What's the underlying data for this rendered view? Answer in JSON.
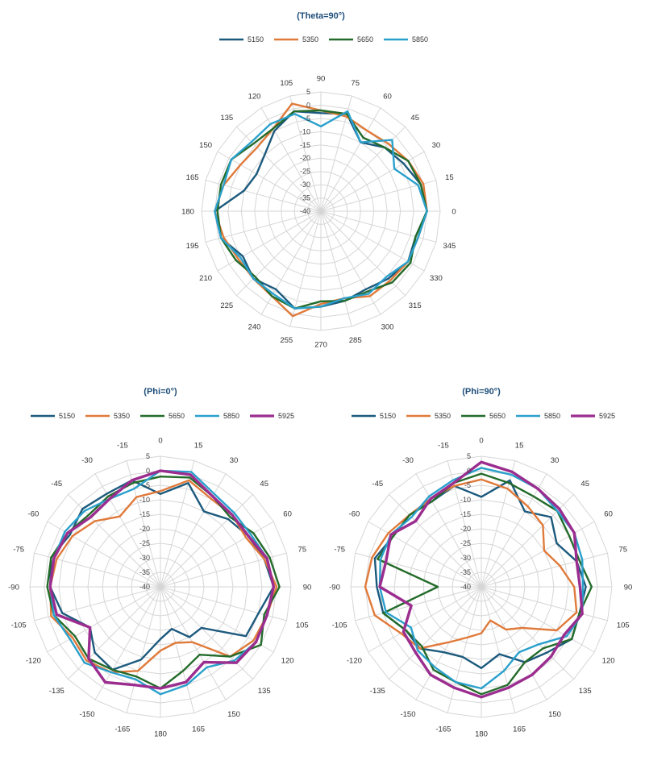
{
  "chart_data": [
    {
      "type": "radar",
      "title": "(Theta=90°)",
      "angle_labels": [
        "90",
        "75",
        "60",
        "45",
        "30",
        "15",
        "0",
        "345",
        "330",
        "315",
        "300",
        "285",
        "270",
        "255",
        "240",
        "225",
        "210",
        "195",
        "180",
        "165",
        "150",
        "135",
        "120",
        "105"
      ],
      "radial_labels": [
        "5",
        "0",
        "-5",
        "-10",
        "-15",
        "-20",
        "-25",
        "-30",
        "-35",
        "-40"
      ],
      "rlim": [
        -40,
        5
      ],
      "grid": true,
      "legend_position": "top",
      "series": [
        {
          "name": "5150",
          "color": "#1c5a7d",
          "values": [
            -3,
            -2,
            -10,
            -6,
            -4,
            -1,
            0,
            -3,
            -2,
            -4,
            -6,
            -5,
            -4,
            -2,
            -6,
            -4,
            -6,
            -1,
            0,
            -10,
            -12,
            -10,
            -5,
            -1
          ]
        },
        {
          "name": "5350",
          "color": "#e07a3a",
          "values": [
            -2,
            -3,
            -5,
            -4,
            -2,
            0,
            0,
            -2,
            -2,
            -3,
            -3,
            -6,
            -5,
            1,
            -3,
            -4,
            -4,
            -2,
            0,
            -2,
            -5,
            -6,
            -4,
            2
          ]
        },
        {
          "name": "5650",
          "color": "#236b2a",
          "values": [
            -2,
            -2,
            -8,
            -6,
            -2,
            -1,
            0,
            -3,
            -1,
            -2,
            -5,
            -5,
            -6,
            -2,
            -3,
            -5,
            -3,
            -1,
            -1,
            -1,
            -1,
            -4,
            -4,
            -1
          ]
        },
        {
          "name": "5850",
          "color": "#2aa0cc",
          "values": [
            -8,
            -1,
            -10,
            -2,
            -8,
            -2,
            0,
            -2,
            -2,
            -5,
            -4,
            -6,
            -4,
            -2,
            -4,
            -4,
            -5,
            -1,
            0,
            -2,
            -1,
            -3,
            -2,
            -2
          ]
        }
      ]
    },
    {
      "type": "radar",
      "title": "(Phi=0°)",
      "angle_labels": [
        "0",
        "15",
        "30",
        "45",
        "60",
        "75",
        "90",
        "105",
        "120",
        "135",
        "150",
        "165",
        "180",
        "-165",
        "-150",
        "-135",
        "-120",
        "-105",
        "-90",
        "-75",
        "-60",
        "-45",
        "-30",
        "-15"
      ],
      "radial_labels": [
        "5",
        "0",
        "-5",
        "-10",
        "-15",
        "-20",
        "-25",
        "-30",
        "-35",
        "-40"
      ],
      "rlim": [
        -40,
        5
      ],
      "grid": true,
      "legend_position": "top",
      "series": [
        {
          "name": "5150",
          "color": "#1c5a7d",
          "values": [
            -8,
            -3,
            -10,
            -7,
            -5,
            -3,
            -1,
            -5,
            -6,
            -20,
            -20,
            -25,
            -22,
            -14,
            -7,
            -8,
            -12,
            -5,
            -2,
            -1,
            -4,
            -2,
            -3,
            -2
          ]
        },
        {
          "name": "5350",
          "color": "#e07a3a",
          "values": [
            -7,
            -2,
            -5,
            -5,
            -6,
            -3,
            0,
            -2,
            -3,
            -6,
            -18,
            -20,
            -18,
            -10,
            -6,
            -4,
            -5,
            -1,
            -2,
            -3,
            -5,
            -8,
            -12,
            -8
          ]
        },
        {
          "name": "5650",
          "color": "#236b2a",
          "values": [
            -2,
            -1,
            -4,
            -6,
            -3,
            -1,
            1,
            -3,
            0,
            -6,
            -13,
            -10,
            -5,
            -8,
            -7,
            -5,
            -6,
            -2,
            -1,
            -1,
            -3,
            -5,
            -4,
            -3
          ]
        },
        {
          "name": "5850",
          "color": "#2aa0cc",
          "values": [
            0,
            1,
            -3,
            -4,
            -4,
            -2,
            -1,
            -2,
            -2,
            -4,
            -8,
            -5,
            -3,
            -7,
            -6,
            -3,
            -4,
            -2,
            -2,
            -2,
            -2,
            -3,
            -5,
            -5
          ]
        },
        {
          "name": "5925",
          "color": "#9b2d8f",
          "values": [
            0,
            0,
            -4,
            -5,
            -5,
            -2,
            -1,
            -2,
            -2,
            -3,
            -10,
            -6,
            -5,
            -5,
            -2,
            -5,
            -12,
            -3,
            -2,
            -2,
            -3,
            -6,
            -5,
            -2
          ]
        }
      ]
    },
    {
      "type": "radar",
      "title": "(Phi=90°)",
      "angle_labels": [
        "0",
        "15",
        "30",
        "45",
        "60",
        "75",
        "90",
        "105",
        "120",
        "135",
        "150",
        "165",
        "180",
        "-165",
        "-150",
        "-135",
        "-120",
        "-105",
        "-90",
        "-75",
        "-60",
        "-45",
        "-30",
        "-15"
      ],
      "radial_labels": [
        "5",
        "0",
        "-5",
        "-10",
        "-15",
        "-20",
        "-25",
        "-30",
        "-35",
        "-40"
      ],
      "rlim": [
        -40,
        5
      ],
      "grid": true,
      "legend_position": "top",
      "series": [
        {
          "name": "5150",
          "color": "#1c5a7d",
          "values": [
            -9,
            -2,
            -10,
            -6,
            -10,
            -6,
            -4,
            -5,
            -4,
            -8,
            -10,
            -16,
            -12,
            -15,
            -14,
            -10,
            -10,
            -5,
            -4,
            -2,
            -5,
            -5,
            -6,
            -4
          ]
        },
        {
          "name": "5350",
          "color": "#e07a3a",
          "values": [
            -3,
            -5,
            -8,
            -10,
            -15,
            -12,
            -8,
            -6,
            -10,
            -20,
            -23,
            -28,
            -24,
            -22,
            -18,
            -10,
            -8,
            -2,
            0,
            -1,
            -3,
            -5,
            -5,
            -4
          ]
        },
        {
          "name": "5650",
          "color": "#236b2a",
          "values": [
            -1,
            -3,
            -4,
            -3,
            -5,
            -5,
            -2,
            -5,
            -4,
            -10,
            -10,
            -5,
            -3,
            -6,
            -7,
            -11,
            -10,
            -5,
            -25,
            -3,
            -5,
            -5,
            -6,
            -3
          ]
        },
        {
          "name": "5850",
          "color": "#2aa0cc",
          "values": [
            1,
            0,
            -1,
            -3,
            -3,
            -4,
            -5,
            -4,
            -6,
            -12,
            -14,
            -10,
            -5,
            -6,
            -8,
            -9,
            -12,
            -6,
            -5,
            -4,
            -4,
            -6,
            -4,
            -2
          ]
        },
        {
          "name": "5925",
          "color": "#9b2d8f",
          "values": [
            3,
            1,
            -1,
            -2,
            -3,
            -6,
            -6,
            -4,
            -7,
            -6,
            -5,
            -4,
            -2,
            -4,
            -5,
            -8,
            -9,
            -15,
            -5,
            -6,
            -4,
            -8,
            -5,
            -3
          ]
        }
      ]
    }
  ]
}
